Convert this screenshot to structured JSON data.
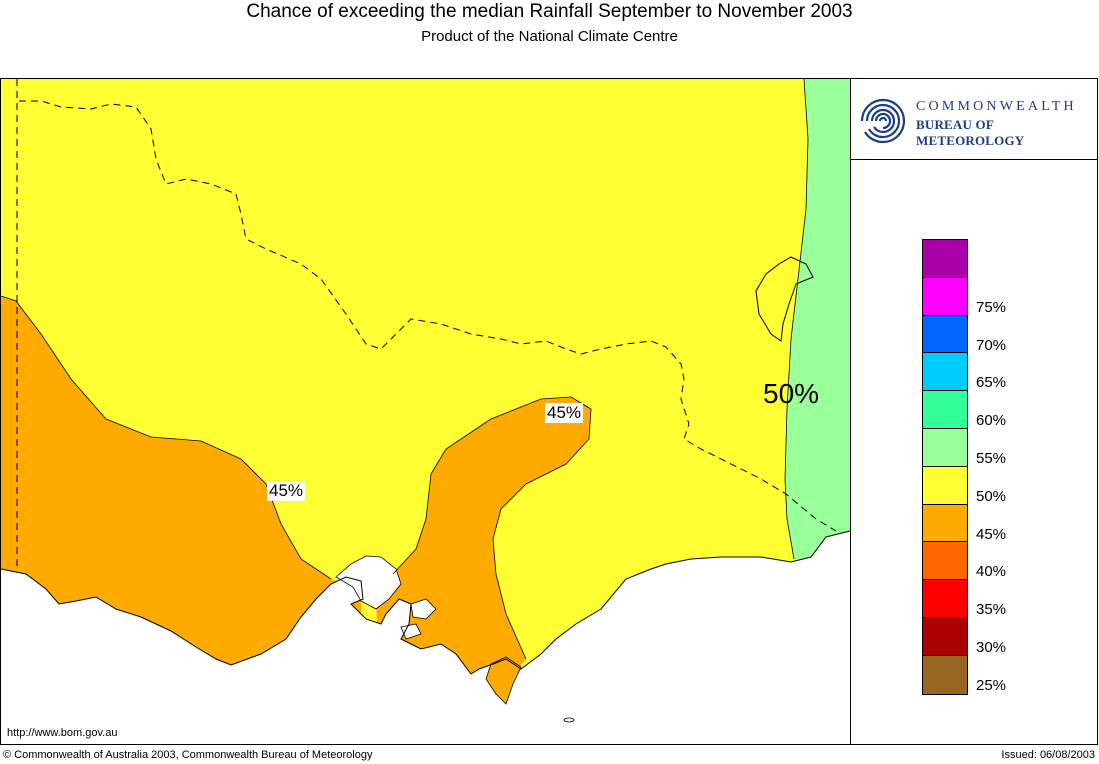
{
  "header": {
    "title": "Chance of exceeding the median Rainfall September to November 2003",
    "subtitle": "Product of the National Climate Centre"
  },
  "logo": {
    "line1": "COMMONWEALTH",
    "line2": "BUREAU OF METEOROLOGY",
    "icon": "bom-swirl-icon"
  },
  "map": {
    "contour_labels": {
      "west": "45%",
      "central": "45%",
      "east": "50%"
    },
    "colors": {
      "yellow_50": "#ffff33",
      "orange_45": "#ffaa00",
      "green_55": "#99ff99"
    }
  },
  "legend": {
    "items": [
      {
        "label": "",
        "color": "#aa00aa"
      },
      {
        "label": "75%",
        "color": "#ff00ff"
      },
      {
        "label": "70%",
        "color": "#0066ff"
      },
      {
        "label": "65%",
        "color": "#00ccff"
      },
      {
        "label": "60%",
        "color": "#33ff99"
      },
      {
        "label": "55%",
        "color": "#99ff99"
      },
      {
        "label": "50%",
        "color": "#ffff33"
      },
      {
        "label": "45%",
        "color": "#ffaa00"
      },
      {
        "label": "40%",
        "color": "#ff6600"
      },
      {
        "label": "35%",
        "color": "#ff0000"
      },
      {
        "label": "30%",
        "color": "#aa0000"
      },
      {
        "label": "25%",
        "color": "#996622"
      }
    ]
  },
  "footer": {
    "url": "http://www.bom.gov.au",
    "copyright": "© Commonwealth of Australia 2003, Commonwealth Bureau of Meteorology",
    "issued": "Issued: 06/08/2003"
  }
}
